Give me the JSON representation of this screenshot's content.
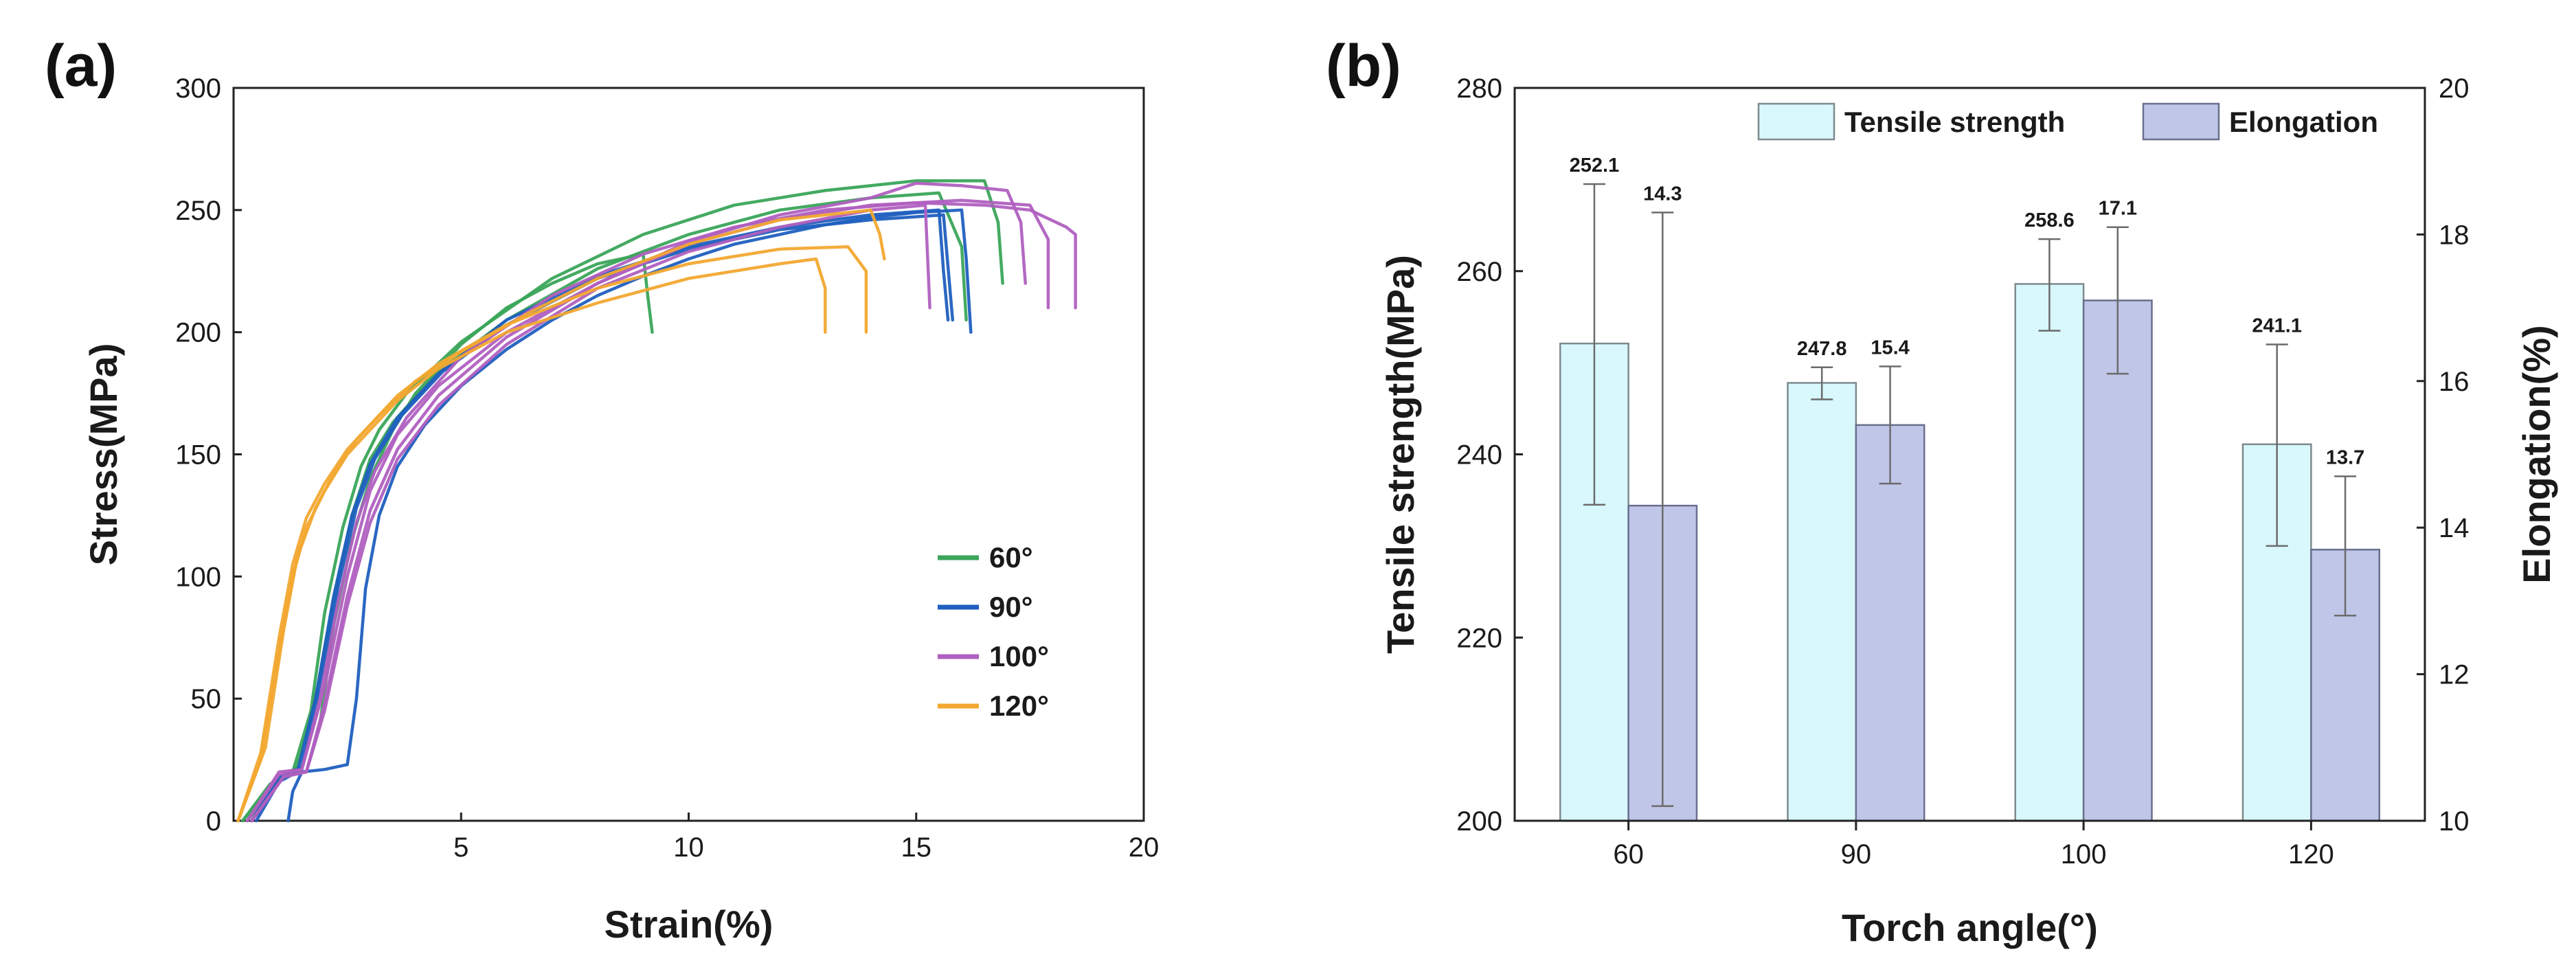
{
  "panels": {
    "a": {
      "label": "(a)"
    },
    "b": {
      "label": "(b)"
    }
  },
  "chart_data": [
    {
      "type": "line",
      "title": "",
      "panel": "(a)",
      "xlabel": "Strain(%)",
      "ylabel": "Stress(MPa)",
      "xlim": [
        0,
        20
      ],
      "ylim": [
        0,
        300
      ],
      "xticks": [
        5,
        10,
        15,
        20
      ],
      "yticks": [
        0,
        50,
        100,
        150,
        200,
        250,
        300
      ],
      "grid": false,
      "legend_position": "center-right",
      "series": [
        {
          "name": "60°",
          "color": "#3aa55a",
          "curves": [
            {
              "x": [
                0.2,
                0.8,
                1.2,
                1.6,
                1.9,
                2.2,
                2.6,
                3.0,
                3.5,
                4.0,
                5.0,
                6.0,
                7.0,
                8.0,
                9.0,
                9.1,
                9.2
              ],
              "y": [
                0,
                15,
                19,
                20,
                40,
                80,
                115,
                140,
                160,
                175,
                195,
                210,
                220,
                228,
                232,
                215,
                200
              ]
            },
            {
              "x": [
                0.2,
                0.9,
                1.3,
                1.7,
                2.0,
                2.4,
                2.8,
                3.2,
                3.8,
                5.0,
                7.0,
                9.0,
                11.0,
                13.0,
                15.0,
                16.5,
                16.8,
                16.9
              ],
              "y": [
                0,
                16,
                20,
                45,
                85,
                120,
                145,
                160,
                175,
                196,
                222,
                240,
                252,
                258,
                262,
                262,
                245,
                220
              ]
            },
            {
              "x": [
                0.3,
                1.0,
                1.4,
                1.8,
                2.2,
                2.6,
                3.0,
                3.5,
                4.5,
                6.0,
                8.0,
                10.0,
                12.0,
                14.0,
                15.5,
                16.0,
                16.1
              ],
              "y": [
                0,
                17,
                22,
                50,
                90,
                125,
                148,
                163,
                184,
                205,
                226,
                240,
                250,
                255,
                257,
                235,
                205
              ]
            }
          ]
        },
        {
          "name": "90°",
          "color": "#1f5fbf",
          "curves": [
            {
              "x": [
                1.2,
                1.3,
                1.5,
                2.0,
                2.5,
                2.7,
                2.9,
                3.2,
                3.6,
                4.2,
                5.0,
                6.0,
                7.0,
                8.0,
                9.0,
                10.0,
                11.0,
                12.0,
                13.0,
                14.0,
                15.0,
                16.0,
                16.1,
                16.2
              ],
              "y": [
                0,
                12,
                20,
                21,
                23,
                50,
                95,
                125,
                145,
                162,
                178,
                193,
                205,
                215,
                223,
                230,
                236,
                240,
                244,
                247,
                249,
                250,
                230,
                200
              ]
            },
            {
              "x": [
                0.5,
                1.0,
                1.4,
                1.8,
                2.2,
                2.6,
                3.0,
                3.6,
                4.5,
                6.0,
                8.0,
                10.0,
                12.0,
                14.0,
                15.5,
                15.6,
                15.7
              ],
              "y": [
                0,
                16,
                20,
                50,
                92,
                125,
                146,
                165,
                183,
                205,
                223,
                235,
                243,
                248,
                250,
                225,
                205
              ]
            },
            {
              "x": [
                0.4,
                1.0,
                1.5,
                1.9,
                2.3,
                2.7,
                3.1,
                3.7,
                4.6,
                6.0,
                8.0,
                10.0,
                12.0,
                14.0,
                15.6,
                15.8
              ],
              "y": [
                0,
                18,
                22,
                55,
                96,
                128,
                148,
                166,
                184,
                203,
                222,
                234,
                242,
                246,
                248,
                205
              ]
            }
          ]
        },
        {
          "name": "100°",
          "color": "#b060c0",
          "curves": [
            {
              "x": [
                0.3,
                1.0,
                1.5,
                1.9,
                2.3,
                2.7,
                3.1,
                3.8,
                5.0,
                7.0,
                9.0,
                11.0,
                13.0,
                15.0,
                16.5,
                17.5,
                18.3,
                18.5,
                18.5
              ],
              "y": [
                0,
                20,
                21,
                50,
                90,
                122,
                143,
                165,
                190,
                215,
                232,
                243,
                250,
                253,
                252,
                250,
                243,
                240,
                210
              ]
            },
            {
              "x": [
                0.3,
                1.0,
                1.5,
                2.0,
                2.5,
                3.0,
                3.6,
                4.5,
                6.0,
                8.0,
                10.0,
                12.0,
                14.0,
                15.0,
                16.0,
                17.0,
                17.3,
                17.4
              ],
              "y": [
                0,
                19,
                21,
                55,
                100,
                135,
                158,
                178,
                200,
                220,
                237,
                248,
                255,
                261,
                260,
                258,
                245,
                220
              ]
            },
            {
              "x": [
                0.4,
                1.1,
                1.6,
                2.0,
                2.5,
                3.0,
                3.6,
                4.5,
                6.0,
                8.0,
                10.0,
                12.0,
                14.0,
                15.2,
                15.3
              ],
              "y": [
                0,
                18,
                20,
                45,
                88,
                122,
                148,
                170,
                195,
                218,
                233,
                243,
                250,
                252,
                210
              ]
            },
            {
              "x": [
                0.4,
                1.1,
                1.6,
                2.0,
                2.5,
                3.0,
                3.6,
                4.5,
                6.0,
                8.0,
                10.0,
                12.0,
                14.0,
                16.0,
                17.5,
                17.9,
                17.9
              ],
              "y": [
                0,
                18,
                20,
                48,
                92,
                127,
                152,
                174,
                198,
                220,
                236,
                246,
                252,
                254,
                252,
                238,
                210
              ]
            }
          ]
        },
        {
          "name": "120°",
          "color": "#f2a830",
          "curves": [
            {
              "x": [
                0.1,
                0.6,
                1.0,
                1.3,
                1.6,
                2.0,
                2.5,
                3.0,
                3.6,
                4.5,
                6.0,
                8.0,
                10.0,
                12.0,
                12.8,
                13.0,
                13.0
              ],
              "y": [
                0,
                25,
                70,
                100,
                120,
                135,
                150,
                160,
                172,
                185,
                200,
                212,
                222,
                228,
                230,
                218,
                200
              ]
            },
            {
              "x": [
                0.1,
                0.6,
                1.0,
                1.3,
                1.6,
                2.0,
                2.5,
                3.0,
                3.6,
                4.5,
                6.0,
                8.0,
                10.0,
                12.0,
                13.5,
                13.9,
                13.9
              ],
              "y": [
                0,
                28,
                75,
                105,
                124,
                138,
                152,
                162,
                174,
                187,
                203,
                218,
                228,
                234,
                235,
                225,
                200
              ]
            },
            {
              "x": [
                0.1,
                0.7,
                1.1,
                1.4,
                1.8,
                2.2,
                2.7,
                3.2,
                4.0,
                5.0,
                6.5,
                8.0,
                10.0,
                12.0,
                14.0,
                14.2,
                14.3
              ],
              "y": [
                0,
                30,
                78,
                108,
                128,
                142,
                156,
                166,
                180,
                192,
                208,
                222,
                236,
                246,
                250,
                240,
                230
              ]
            }
          ]
        }
      ]
    },
    {
      "type": "bar",
      "title": "",
      "panel": "(b)",
      "xlabel": "Torch angle(°)",
      "ylabel": "Tensile strength(MPa)",
      "ylabel_right": "Elongation(%)",
      "categories": [
        "60",
        "90",
        "100",
        "120"
      ],
      "ylim": [
        200,
        280
      ],
      "yticks": [
        200,
        220,
        240,
        260,
        280
      ],
      "ylim_right": [
        10,
        20
      ],
      "yticks_right": [
        10,
        12,
        14,
        16,
        18,
        20
      ],
      "legend_position": "top-right",
      "series": [
        {
          "name": "Tensile strength",
          "axis": "left",
          "color": "#d8f8fc",
          "edge": "#7e8a8e",
          "values": [
            252.1,
            247.8,
            258.6,
            241.1
          ],
          "labels": [
            "252.1",
            "247.8",
            "258.6",
            "241.1"
          ],
          "error_low": [
            234.5,
            246.0,
            253.5,
            230.0
          ],
          "error_high": [
            269.5,
            249.5,
            263.5,
            252.0
          ]
        },
        {
          "name": "Elongation",
          "axis": "right",
          "color": "#c0c6e8",
          "edge": "#6a6f8e",
          "values": [
            14.3,
            15.4,
            17.1,
            13.7
          ],
          "labels": [
            "14.3",
            "15.4",
            "17.1",
            "13.7"
          ],
          "error_low": [
            10.2,
            14.6,
            16.1,
            12.8
          ],
          "error_high": [
            18.3,
            16.2,
            18.1,
            14.7
          ]
        }
      ]
    }
  ]
}
